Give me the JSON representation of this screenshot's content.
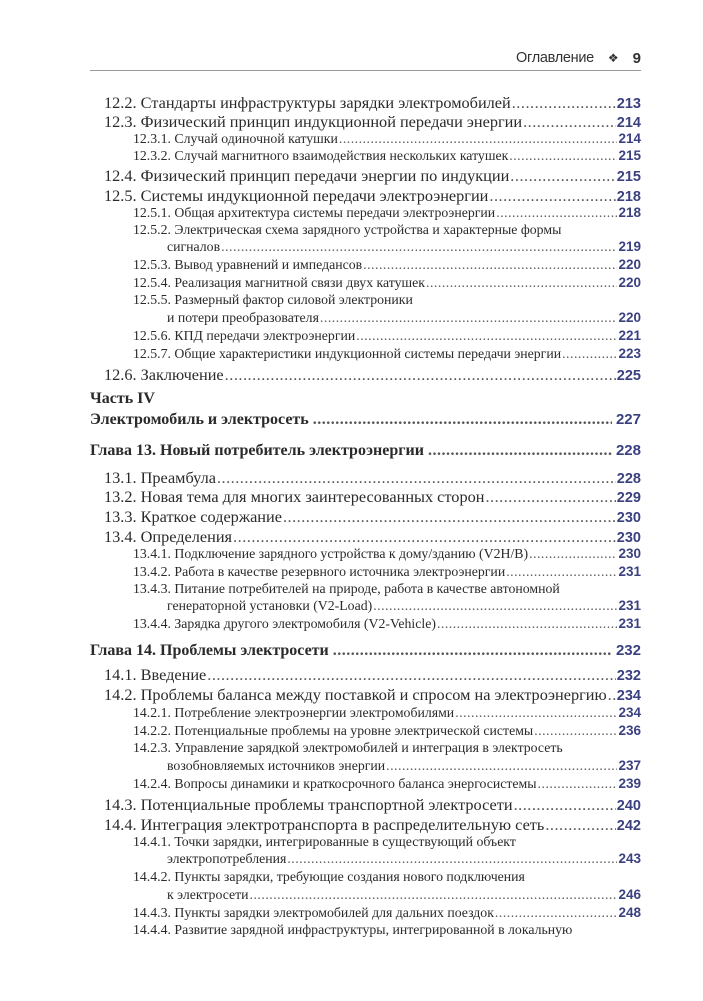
{
  "header": {
    "title": "Оглавление",
    "ornament": "❖",
    "page_number": "9"
  },
  "colors": {
    "page_numbers": "#3b4180",
    "text": "#2a2a2a",
    "rule": "#9a9a9a"
  },
  "part": {
    "label": "Часть IV"
  },
  "entries": [
    {
      "level": 2,
      "text": "12.2. Стандарты инфраструктуры зарядки электромобилей",
      "page": "213"
    },
    {
      "level": 2,
      "text": "12.3. Физический принцип индукционной передачи энергии",
      "page": "214"
    },
    {
      "level": 3,
      "text": "12.3.1. Случай одиночной катушки",
      "page": "214"
    },
    {
      "level": 3,
      "text": "12.3.2. Случай магнитного взаимодействия нескольких катушек",
      "page": "215"
    },
    {
      "level": 2,
      "text": "12.4. Физический принцип передачи энергии по индукции",
      "page": "215"
    },
    {
      "level": 2,
      "text": "12.5. Системы индукционной передачи электроэнергии",
      "page": "218"
    },
    {
      "level": 3,
      "text": "12.5.1. Общая архитектура системы передачи электроэнергии",
      "page": "218"
    },
    {
      "level": 3,
      "text": "12.5.2. Электрическая схема зарядного устройства и характерные формы",
      "cont": "сигналов",
      "page": "219"
    },
    {
      "level": 3,
      "text": "12.5.3. Вывод уравнений и импедансов",
      "page": "220"
    },
    {
      "level": 3,
      "text": "12.5.4. Реализация магнитной связи двух катушек",
      "page": "220"
    },
    {
      "level": 3,
      "text": "12.5.5. Размерный фактор силовой электроники",
      "cont": "и потери преобразователя",
      "page": "220"
    },
    {
      "level": 3,
      "text": "12.5.6. КПД передачи электроэнергии",
      "page": "221"
    },
    {
      "level": 3,
      "text": "12.5.7. Общие характеристики индукционной системы передачи энергии",
      "page": "223"
    },
    {
      "level": 2,
      "text": "12.6. Заключение",
      "page": "225"
    },
    {
      "level": 1,
      "text": "Электромобиль и электросеть",
      "page": "227"
    },
    {
      "level": 1,
      "text": "Глава 13. Новый потребитель электроэнергии",
      "page": "228"
    },
    {
      "level": 2,
      "text": "13.1. Преамбула",
      "page": "228"
    },
    {
      "level": 2,
      "text": "13.2. Новая тема для многих заинтересованных сторон",
      "page": "229"
    },
    {
      "level": 2,
      "text": "13.3. Краткое содержание",
      "page": "230"
    },
    {
      "level": 2,
      "text": "13.4. Определения",
      "page": "230"
    },
    {
      "level": 3,
      "text": "13.4.1. Подключение зарядного устройства к дому/зданию (V2H/B)",
      "page": "230"
    },
    {
      "level": 3,
      "text": "13.4.2. Работа в качестве резервного источника электроэнергии",
      "page": "231"
    },
    {
      "level": 3,
      "text": "13.4.3. Питание потребителей на природе, работа в качестве автономной",
      "cont": "генераторной установки (V2-Load)",
      "page": "231"
    },
    {
      "level": 3,
      "text": "13.4.4. Зарядка другого электромобиля (V2-Vehicle)",
      "page": "231"
    },
    {
      "level": 1,
      "text": "Глава 14. Проблемы электросети",
      "page": "232"
    },
    {
      "level": 2,
      "text": "14.1. Введение",
      "page": "232"
    },
    {
      "level": 2,
      "text": "14.2. Проблемы баланса между поставкой и спросом на электроэнергию",
      "page": "234"
    },
    {
      "level": 3,
      "text": "14.2.1. Потребление электроэнергии электромобилями",
      "page": "234"
    },
    {
      "level": 3,
      "text": "14.2.2. Потенциальные проблемы на уровне электрической системы",
      "page": "236"
    },
    {
      "level": 3,
      "text": "14.2.3. Управление зарядкой электромобилей и интеграция в электросеть",
      "cont": "возобновляемых источников энергии",
      "page": "237"
    },
    {
      "level": 3,
      "text": "14.2.4. Вопросы динамики и краткосрочного баланса энергосистемы",
      "page": "239"
    },
    {
      "level": 2,
      "text": "14.3. Потенциальные проблемы транспортной электросети",
      "page": "240"
    },
    {
      "level": 2,
      "text": "14.4. Интеграция электротранспорта в распределительную сеть",
      "page": "242"
    },
    {
      "level": 3,
      "text": "14.4.1. Точки зарядки, интегрированные в существующий объект",
      "cont": "электропотребления",
      "page": "243"
    },
    {
      "level": 3,
      "text": "14.4.2. Пункты зарядки, требующие создания нового подключения",
      "cont": "к электросети",
      "page": "246"
    },
    {
      "level": 3,
      "text": "14.4.3. Пункты зарядки электромобилей для дальних поездок",
      "page": "248"
    },
    {
      "level": 3,
      "text": "14.4.4. Развитие зарядной инфраструктуры, интегрированной в локальную"
    }
  ]
}
